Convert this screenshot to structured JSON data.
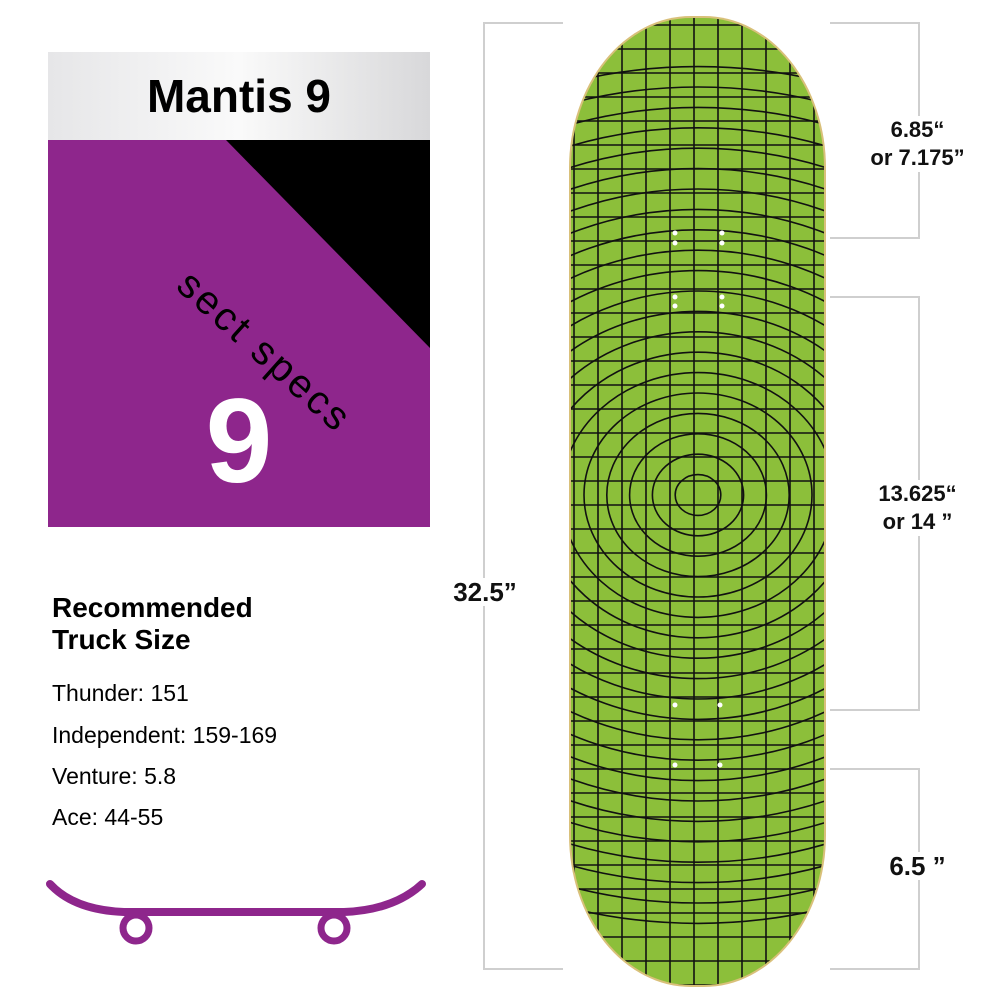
{
  "card": {
    "title": "Mantis 9",
    "brand": "sect specs",
    "number": "9",
    "accent": "#8e268c"
  },
  "trucks": {
    "heading_line1": "Recommended",
    "heading_line2": "Truck Size",
    "items": [
      "Thunder: 151",
      "Independent: 159-169",
      "Venture: 5.8",
      "Ace: 44-55"
    ]
  },
  "dimensions": {
    "length": "32.5”",
    "nose_line1": "6.85“",
    "nose_line2": "or 7.175”",
    "wheelbase_line1": "13.625“",
    "wheelbase_line2": "or 14 ”",
    "tail": "6.5 ”"
  },
  "deck": {
    "color": "#8cbf3a",
    "icon": "skateboard-icon"
  }
}
